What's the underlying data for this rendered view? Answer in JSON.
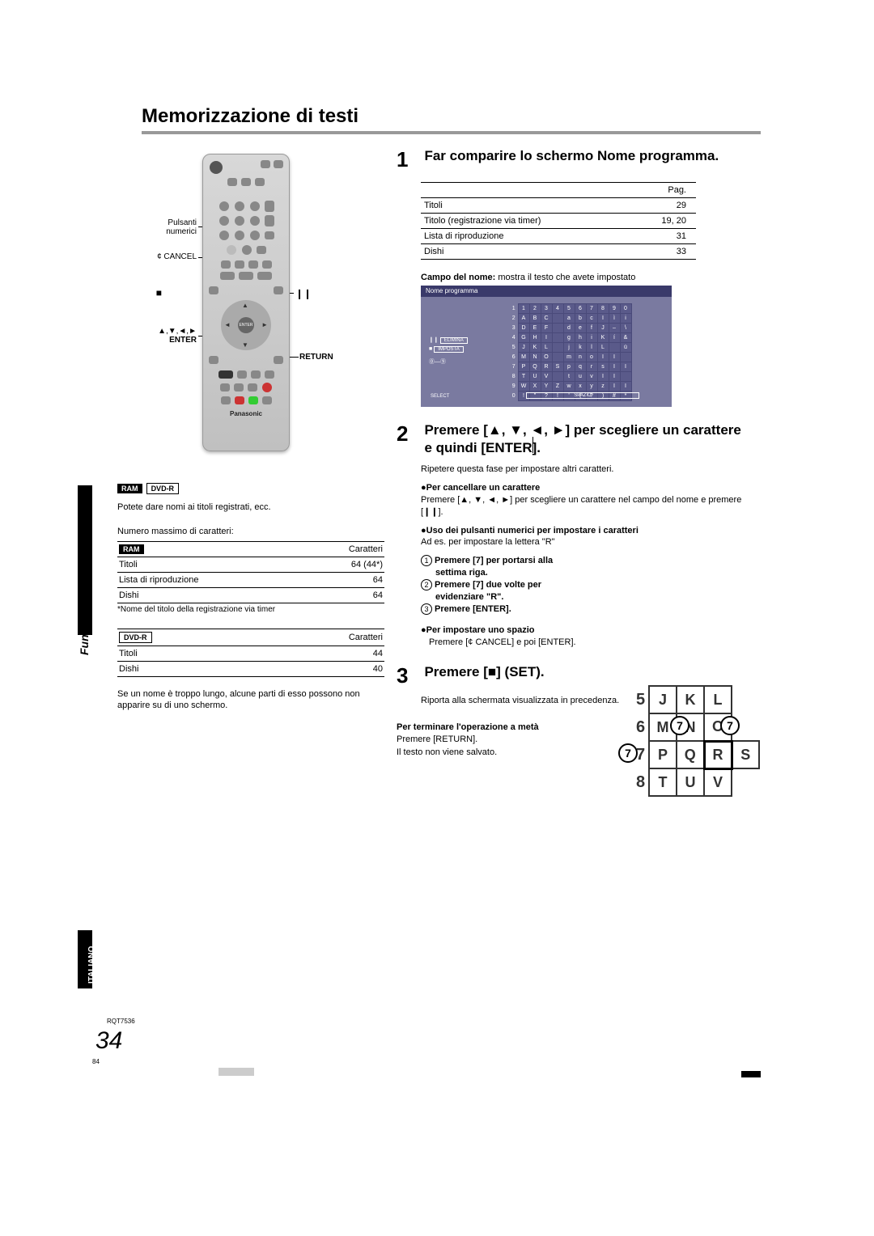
{
  "title": "Memorizzazione di testi",
  "sideLabel": "Funzioni convenienti",
  "langTab": "ITALIANO",
  "pageNumber": "34",
  "docRef": "RQT7536",
  "pageRef2": "84",
  "remote": {
    "labels": {
      "pulsanti": "Pulsanti",
      "numerici": "numerici",
      "cancel": "¢ CANCEL",
      "arrows": "▲,▼,◄,►",
      "enter": "ENTER",
      "return": "RETURN",
      "enterBtn": "ENTER",
      "brand": "Panasonic"
    }
  },
  "leftColumn": {
    "badgeRam": "RAM",
    "badgeDvdr": "DVD-R",
    "introText": "Potete dare nomi ai titoli registrati, ecc.",
    "maxChars": "Numero massimo di caratteri:",
    "table1": {
      "hdr": "Caratteri",
      "rows": [
        {
          "label": "Titoli",
          "val": "64 (44*)"
        },
        {
          "label": "Lista di riproduzione",
          "val": "64"
        },
        {
          "label": "Dishi",
          "val": "64"
        }
      ],
      "foot": "*Nome del titolo della registrazione via timer"
    },
    "table2": {
      "hdr": "Caratteri",
      "rows": [
        {
          "label": "Titoli",
          "val": "44"
        },
        {
          "label": "Dishi",
          "val": "40"
        }
      ]
    },
    "longNote": "Se un nome è troppo lungo, alcune parti di esso possono non apparire su di uno schermo."
  },
  "rightColumn": {
    "step1": {
      "num": "1",
      "title": "Far comparire lo schermo Nome programma.",
      "pagHdr": "Pag.",
      "rows": [
        {
          "label": "Titoli",
          "val": "29"
        },
        {
          "label": "Titolo (registrazione via timer)",
          "val": "19, 20"
        },
        {
          "label": "Lista di riproduzione",
          "val": "31"
        },
        {
          "label": "Dishi",
          "val": "33"
        }
      ],
      "campoBold": "Campo del nome:",
      "campoRest": " mostra il testo che avete impostato",
      "osdTitle": "Nome programma",
      "osdElimina": "ELIMINA",
      "osdImposta": "IMPOSTA",
      "osdSpazio": "SPAZIO",
      "osdSelect": "SELECT",
      "grid": [
        [
          "1",
          "1",
          "2",
          "3",
          "4",
          "5",
          "6",
          "7",
          "8",
          "9",
          "0"
        ],
        [
          "2",
          "A",
          "B",
          "C",
          "",
          "a",
          "b",
          "c",
          "I",
          "ì",
          "i"
        ],
        [
          "3",
          "D",
          "E",
          "F",
          "",
          "d",
          "e",
          "f",
          "J",
          "–",
          "\\"
        ],
        [
          "4",
          "G",
          "H",
          "I",
          "",
          "g",
          "h",
          "i",
          "K",
          "í",
          "&"
        ],
        [
          "5",
          "J",
          "K",
          "L",
          "",
          "j",
          "k",
          "l",
          "L",
          "",
          "ü"
        ],
        [
          "6",
          "M",
          "N",
          "O",
          "",
          "m",
          "n",
          "o",
          "I",
          "I",
          ""
        ],
        [
          "7",
          "P",
          "Q",
          "R",
          "S",
          "p",
          "q",
          "r",
          "s",
          "I",
          "I"
        ],
        [
          "8",
          "T",
          "U",
          "V",
          "",
          "t",
          "u",
          "v",
          "I",
          "I",
          ""
        ],
        [
          "9",
          "W",
          "X",
          "Y",
          "Z",
          "w",
          "x",
          "y",
          "z",
          "I",
          "I"
        ],
        [
          "0",
          "!",
          "\"",
          "?",
          "!",
          "'",
          "(",
          "?",
          ")",
          "#",
          "*"
        ]
      ]
    },
    "step2": {
      "num": "2",
      "title": "Premere [▲, ▼, ◄, ►] per scegliere un carattere e quindi [ENTER].",
      "sub1": "Ripetere questa fase per impostare altri caratteri.",
      "cancelBold": "●Per cancellare un carattere",
      "cancelText": "Premere [▲, ▼, ◄, ►] per scegliere un carattere nel campo del nome e premere [❙❙].",
      "numBold": "●Uso dei pulsanti numerici per impostare i caratteri",
      "numText": "Ad es. per impostare la lettera \"R\"",
      "steps": {
        "s1a": "Premere [7] per portarsi alla",
        "s1b": "settima riga.",
        "s2a": "Premere [7] due volte per",
        "s2b": "evidenziare \"R\".",
        "s3": "Premere [ENTER]."
      },
      "spaceBold": "●Per impostare uno spazio",
      "spaceText": "Premere [¢ CANCEL] e poi [ENTER].",
      "keypad": {
        "r5": [
          "5",
          "J",
          "K",
          "L"
        ],
        "r6": [
          "6",
          "M",
          "N",
          "O"
        ],
        "r7": [
          "7",
          "P",
          "Q",
          "R",
          "S"
        ],
        "r8": [
          "8",
          "T",
          "U",
          "V"
        ]
      }
    },
    "step3": {
      "num": "3",
      "title": "Premere [■] (SET).",
      "sub": "Riporta alla schermata visualizzata in precedenza."
    },
    "terminate": {
      "bold": "Per terminare l'operazione a metà",
      "l1": "Premere [RETURN].",
      "l2": "Il testo non viene salvato."
    }
  }
}
